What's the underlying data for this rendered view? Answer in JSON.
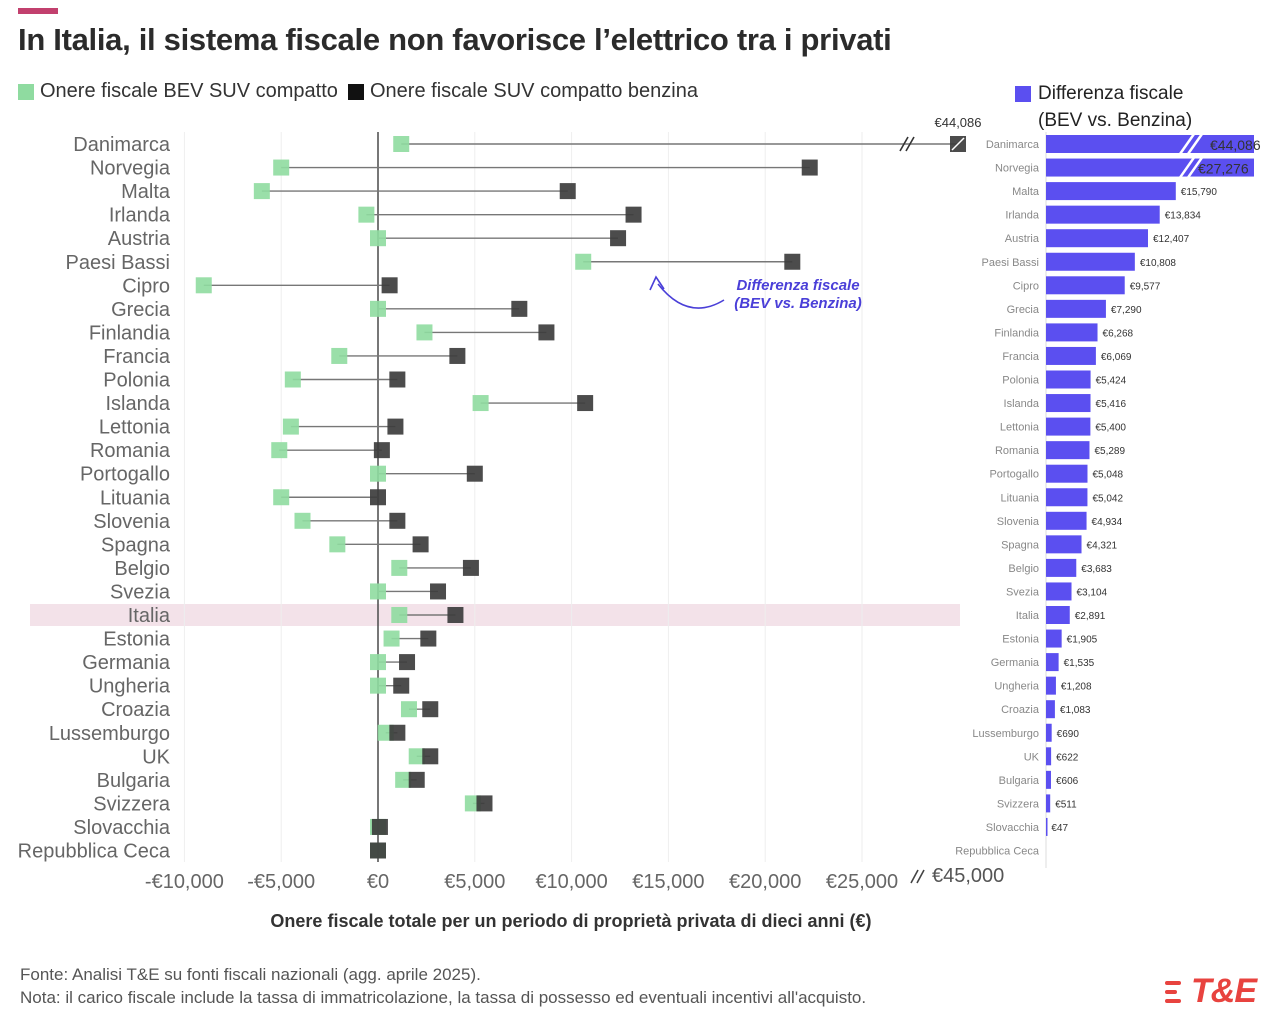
{
  "header": {
    "title": "In Italia, il sistema fiscale non favorisce l’elettrico tra i privati"
  },
  "legend": {
    "bev_label": "Onere fiscale BEV SUV compatto",
    "petrol_label": "Onere fiscale SUV compatto benzina",
    "diff_label_line1": "Differenza fiscale",
    "diff_label_line2": "(BEV vs. Benzina)"
  },
  "annotation": {
    "line1": "Differenza fiscale",
    "line2": "(BEV vs. Benzina)"
  },
  "colors": {
    "bev": "#8fdba0",
    "petrol": "#3d3d3d",
    "diff": "#5b4ff0",
    "accent": "#c2406e",
    "highlight": "#f3e2e9",
    "annotation": "#4a3fd8",
    "logo": "#e8433f"
  },
  "chart_data": [
    {
      "type": "dumbbell",
      "title": "In Italia, il sistema fiscale non favorisce l’elettrico tra i privati",
      "xlabel": "Onere fiscale totale per un periodo di proprietà privata di dieci anni (€)",
      "xlim": [
        -10000,
        29000
      ],
      "xticks": [
        -10000,
        -5000,
        0,
        5000,
        10000,
        15000,
        20000,
        25000
      ],
      "xtick_labels": [
        "-€10,000",
        "-€5,000",
        "€0",
        "€5,000",
        "€10,000",
        "€15,000",
        "€20,000",
        "€25,000"
      ],
      "axis_break_label": "€45,000",
      "break_value_label": "€44,086",
      "highlight_category": "Italia",
      "categories": [
        "Danimarca",
        "Norvegia",
        "Malta",
        "Irlanda",
        "Austria",
        "Paesi Bassi",
        "Cipro",
        "Grecia",
        "Finlandia",
        "Francia",
        "Polonia",
        "Islanda",
        "Lettonia",
        "Romania",
        "Portogallo",
        "Lituania",
        "Slovenia",
        "Spagna",
        "Belgio",
        "Svezia",
        "Italia",
        "Estonia",
        "Germania",
        "Ungheria",
        "Croazia",
        "Lussemburgo",
        "UK",
        "Bulgaria",
        "Svizzera",
        "Slovacchia",
        "Repubblica Ceca"
      ],
      "series": [
        {
          "name": "Onere fiscale BEV SUV compatto",
          "values": [
            1200,
            -5000,
            -6000,
            -600,
            0,
            10600,
            -9000,
            0,
            2400,
            -2000,
            -4400,
            5300,
            -4500,
            -5100,
            0,
            -5000,
            -3900,
            -2100,
            1100,
            0,
            1100,
            700,
            0,
            0,
            1600,
            400,
            2000,
            1300,
            4900,
            0,
            0
          ]
        },
        {
          "name": "Onere fiscale SUV compatto benzina",
          "values": [
            45286,
            22300,
            9800,
            13200,
            12400,
            21400,
            600,
            7300,
            8700,
            4100,
            1000,
            10700,
            900,
            200,
            5000,
            0,
            1000,
            2200,
            4800,
            3100,
            4000,
            2600,
            1500,
            1200,
            2700,
            1000,
            2700,
            2000,
            5500,
            100,
            0
          ]
        }
      ]
    },
    {
      "type": "bar",
      "title": "Differenza fiscale (BEV vs. Benzina)",
      "orientation": "horizontal",
      "categories": [
        "Danimarca",
        "Norvegia",
        "Malta",
        "Irlanda",
        "Austria",
        "Paesi Bassi",
        "Cipro",
        "Grecia",
        "Finlandia",
        "Francia",
        "Polonia",
        "Islanda",
        "Lettonia",
        "Romania",
        "Portogallo",
        "Lituania",
        "Slovenia",
        "Spagna",
        "Belgio",
        "Svezia",
        "Italia",
        "Estonia",
        "Germania",
        "Ungheria",
        "Croazia",
        "Lussemburgo",
        "UK",
        "Bulgaria",
        "Svizzera",
        "Slovacchia",
        "Repubblica Ceca"
      ],
      "values": [
        44086,
        27276,
        15790,
        13834,
        12407,
        10808,
        9577,
        7290,
        6268,
        6069,
        5424,
        5416,
        5400,
        5289,
        5048,
        5042,
        4934,
        4321,
        3683,
        3104,
        2891,
        1905,
        1535,
        1208,
        1083,
        690,
        622,
        606,
        511,
        47,
        0
      ],
      "labels": [
        "€44,086",
        "€27,276",
        "€15,790",
        "€13,834",
        "€12,407",
        "€10,808",
        "€9,577",
        "€7,290",
        "€6,268",
        "€6,069",
        "€5,424",
        "€5,416",
        "€5,400",
        "€5,289",
        "€5,048",
        "€5,042",
        "€4,934",
        "€4,321",
        "€3,683",
        "€3,104",
        "€2,891",
        "€1,905",
        "€1,535",
        "€1,208",
        "€1,083",
        "€690",
        "€622",
        "€606",
        "€511",
        "€47",
        ""
      ],
      "axis_break": true
    }
  ],
  "footer": {
    "source": "Fonte: Analisi T&E su fonti fiscali nazionali (agg. aprile 2025).",
    "note": "Nota: il carico fiscale include la tassa di immatricolazione, la tassa di possesso ed eventuali incentivi all'acquisto."
  },
  "logo": {
    "text": "T&E"
  }
}
